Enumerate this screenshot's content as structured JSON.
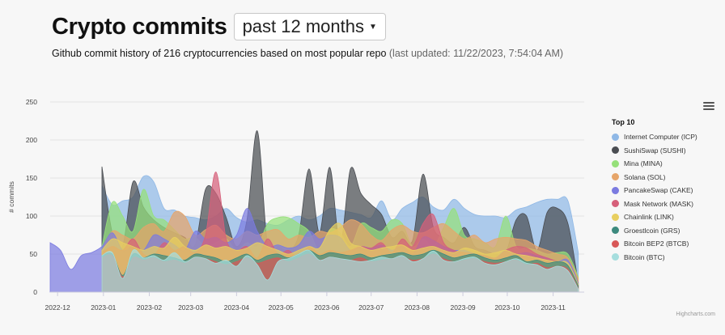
{
  "header": {
    "title": "Crypto commits",
    "period": "past 12 months",
    "subtitle": "Github commit history of 216 cryptocurrencies based on most popular repo",
    "updated": "(last updated: 11/22/2023, 7:54:04 AM)"
  },
  "legend_title": "Top 10",
  "credits": "Highcharts.com",
  "chart_data": {
    "type": "area",
    "ylabel": "# commits",
    "ylim": [
      0,
      250
    ],
    "yticks": [
      0,
      50,
      100,
      150,
      200,
      250
    ],
    "x": [
      "2022-11-26",
      "2022-12-03",
      "2022-12-10",
      "2022-12-17",
      "2022-12-24",
      "2022-12-31",
      "2023-01-07",
      "2023-01-14",
      "2023-01-21",
      "2023-01-28",
      "2023-02-04",
      "2023-02-11",
      "2023-02-18",
      "2023-02-25",
      "2023-03-04",
      "2023-03-11",
      "2023-03-18",
      "2023-03-25",
      "2023-04-01",
      "2023-04-08",
      "2023-04-15",
      "2023-04-22",
      "2023-04-29",
      "2023-05-06",
      "2023-05-13",
      "2023-05-20",
      "2023-05-27",
      "2023-06-03",
      "2023-06-10",
      "2023-06-17",
      "2023-06-24",
      "2023-07-01",
      "2023-07-08",
      "2023-07-15",
      "2023-07-22",
      "2023-07-29",
      "2023-08-05",
      "2023-08-12",
      "2023-08-19",
      "2023-08-26",
      "2023-09-02",
      "2023-09-09",
      "2023-09-16",
      "2023-09-23",
      "2023-09-30",
      "2023-10-07",
      "2023-10-14",
      "2023-10-21",
      "2023-10-28",
      "2023-11-04",
      "2023-11-11",
      "2023-11-18"
    ],
    "xticks": [
      "2022-12",
      "2023-01",
      "2023-02",
      "2023-03",
      "2023-04",
      "2023-05",
      "2023-06",
      "2023-07",
      "2023-08",
      "2023-09",
      "2023-10",
      "2023-11"
    ],
    "legend_position": "right",
    "grid": true,
    "series": [
      {
        "name": "Internet Computer (ICP)",
        "color": "#8fb8e6",
        "values": [
          null,
          null,
          null,
          null,
          null,
          140,
          115,
          120,
          125,
          152,
          145,
          110,
          108,
          100,
          98,
          95,
          100,
          110,
          98,
          92,
          95,
          90,
          88,
          95,
          100,
          95,
          100,
          110,
          108,
          105,
          102,
          98,
          120,
          95,
          110,
          118,
          125,
          112,
          108,
          122,
          110,
          102,
          100,
          100,
          98,
          108,
          112,
          118,
          122,
          122,
          120,
          52
        ]
      },
      {
        "name": "SushiSwap (SUSHI)",
        "color": "#4a4d52",
        "values": [
          null,
          null,
          null,
          null,
          null,
          165,
          78,
          60,
          145,
          112,
          95,
          85,
          78,
          72,
          62,
          135,
          130,
          98,
          60,
          95,
          212,
          60,
          60,
          55,
          75,
          162,
          78,
          164,
          62,
          162,
          130,
          115,
          102,
          72,
          80,
          68,
          155,
          85,
          72,
          65,
          85,
          60,
          55,
          50,
          52,
          95,
          100,
          55,
          105,
          110,
          90,
          12
        ]
      },
      {
        "name": "Mina (MINA)",
        "color": "#96e07a",
        "values": [
          null,
          null,
          null,
          null,
          null,
          60,
          118,
          100,
          80,
          135,
          100,
          95,
          82,
          70,
          72,
          60,
          65,
          70,
          55,
          65,
          60,
          90,
          98,
          98,
          90,
          80,
          55,
          82,
          78,
          60,
          90,
          85,
          80,
          95,
          90,
          60,
          70,
          60,
          85,
          110,
          75,
          70,
          65,
          60,
          100,
          60,
          58,
          55,
          50,
          52,
          50,
          20
        ]
      },
      {
        "name": "Solana (SOL)",
        "color": "#e6a56a",
        "values": [
          null,
          null,
          null,
          null,
          null,
          55,
          80,
          75,
          70,
          85,
          90,
          80,
          105,
          100,
          75,
          82,
          88,
          75,
          70,
          80,
          75,
          80,
          82,
          70,
          75,
          72,
          80,
          78,
          85,
          95,
          90,
          75,
          68,
          82,
          88,
          80,
          78,
          85,
          90,
          80,
          70,
          75,
          65,
          70,
          72,
          70,
          68,
          60,
          55,
          50,
          45,
          18
        ]
      },
      {
        "name": "PancakeSwap (CAKE)",
        "color": "#7b7be0",
        "values": [
          65,
          55,
          30,
          48,
          52,
          60,
          78,
          55,
          60,
          55,
          75,
          70,
          62,
          55,
          80,
          70,
          72,
          65,
          75,
          110,
          80,
          60,
          62,
          58,
          62,
          80,
          70,
          75,
          72,
          55,
          60,
          58,
          62,
          55,
          60,
          50,
          72,
          68,
          60,
          55,
          55,
          50,
          48,
          45,
          55,
          50,
          52,
          48,
          45,
          40,
          42,
          12
        ]
      },
      {
        "name": "Mask Network (MASK)",
        "color": "#d6607a",
        "values": [
          null,
          null,
          null,
          null,
          null,
          52,
          60,
          55,
          70,
          50,
          48,
          65,
          55,
          60,
          52,
          75,
          158,
          70,
          55,
          60,
          45,
          70,
          50,
          55,
          45,
          60,
          50,
          55,
          52,
          55,
          60,
          58,
          65,
          52,
          70,
          60,
          90,
          102,
          65,
          55,
          52,
          50,
          48,
          45,
          55,
          60,
          58,
          50,
          45,
          40,
          35,
          10
        ]
      },
      {
        "name": "Chainlink (LINK)",
        "color": "#e8cf60",
        "values": [
          null,
          null,
          null,
          null,
          null,
          55,
          70,
          65,
          60,
          55,
          60,
          58,
          72,
          60,
          55,
          62,
          58,
          60,
          55,
          58,
          65,
          60,
          55,
          50,
          55,
          60,
          58,
          82,
          90,
          65,
          60,
          55,
          58,
          60,
          62,
          55,
          58,
          60,
          55,
          52,
          58,
          55,
          50,
          52,
          55,
          50,
          48,
          45,
          42,
          40,
          38,
          10
        ]
      },
      {
        "name": "Groestlcoin (GRS)",
        "color": "#3d8a7e",
        "values": [
          null,
          null,
          null,
          null,
          null,
          48,
          50,
          22,
          50,
          45,
          50,
          48,
          45,
          42,
          50,
          48,
          45,
          40,
          45,
          50,
          42,
          48,
          50,
          45,
          50,
          55,
          48,
          52,
          50,
          48,
          50,
          45,
          48,
          50,
          52,
          48,
          50,
          55,
          50,
          45,
          48,
          50,
          45,
          42,
          45,
          48,
          40,
          42,
          38,
          40,
          35,
          8
        ]
      },
      {
        "name": "Bitcoin BEP2 (BTCB)",
        "color": "#d85858",
        "values": [
          null,
          null,
          null,
          null,
          null,
          45,
          48,
          20,
          45,
          42,
          45,
          40,
          42,
          38,
          45,
          44,
          40,
          36,
          40,
          45,
          38,
          42,
          45,
          40,
          45,
          50,
          42,
          46,
          44,
          42,
          45,
          40,
          42,
          44,
          46,
          42,
          44,
          50,
          44,
          40,
          42,
          44,
          40,
          38,
          40,
          42,
          36,
          38,
          32,
          34,
          30,
          5
        ]
      },
      {
        "name": "Bitcoin (BTC)",
        "color": "#a6dede",
        "values": [
          null,
          null,
          null,
          null,
          null,
          48,
          52,
          18,
          55,
          45,
          48,
          42,
          52,
          40,
          46,
          44,
          38,
          42,
          34,
          48,
          36,
          16,
          40,
          44,
          50,
          55,
          42,
          46,
          44,
          42,
          40,
          42,
          46,
          44,
          48,
          40,
          44,
          54,
          42,
          40,
          44,
          46,
          38,
          36,
          40,
          44,
          38,
          36,
          30,
          34,
          28,
          4
        ]
      }
    ]
  }
}
